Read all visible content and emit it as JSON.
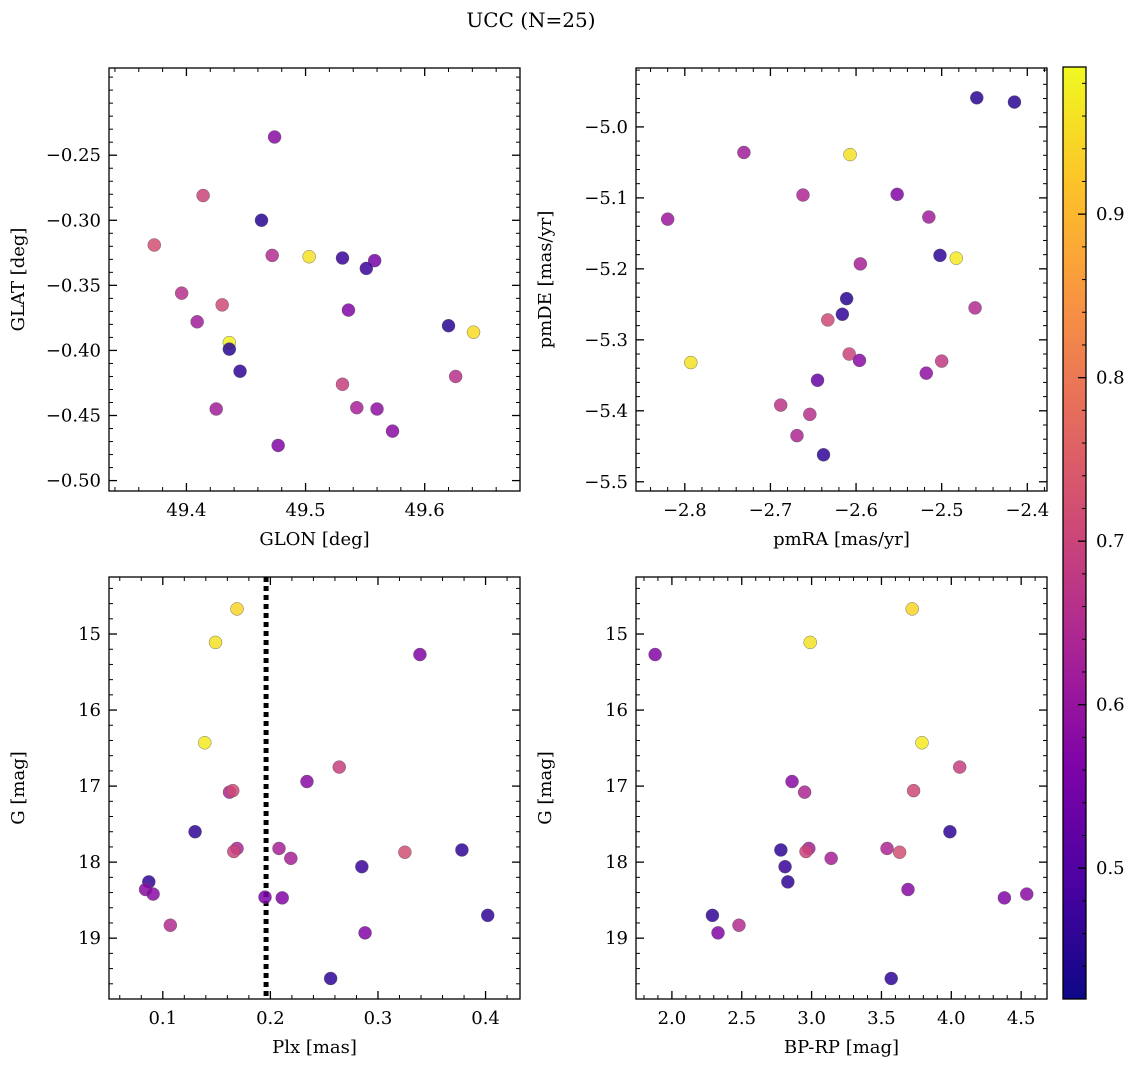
{
  "figure": {
    "title": "UCC (N=25)",
    "colorbar": {
      "colormap": "plasma",
      "range": [
        0.42,
        0.99
      ],
      "ticks": [
        "0.5",
        "0.6",
        "0.7",
        "0.8",
        "0.9"
      ]
    }
  },
  "chart_data": [
    {
      "type": "scatter",
      "xlabel": "GLON [deg]",
      "ylabel": "GLAT [deg]",
      "xlim": [
        49.335,
        49.68
      ],
      "ylim": [
        -0.508,
        -0.183
      ],
      "xticks": [
        "49.4",
        "49.5",
        "49.6"
      ],
      "yticks": [
        "−0.25",
        "−0.30",
        "−0.35",
        "−0.40",
        "−0.45",
        "−0.50"
      ],
      "points": [
        {
          "x": 49.474,
          "y": -0.236,
          "c": 0.58
        },
        {
          "x": 49.414,
          "y": -0.281,
          "c": 0.7
        },
        {
          "x": 49.463,
          "y": -0.3,
          "c": 0.45
        },
        {
          "x": 49.373,
          "y": -0.319,
          "c": 0.72
        },
        {
          "x": 49.472,
          "y": -0.327,
          "c": 0.65
        },
        {
          "x": 49.503,
          "y": -0.328,
          "c": 0.96
        },
        {
          "x": 49.531,
          "y": -0.329,
          "c": 0.47
        },
        {
          "x": 49.558,
          "y": -0.331,
          "c": 0.55
        },
        {
          "x": 49.551,
          "y": -0.337,
          "c": 0.47
        },
        {
          "x": 49.396,
          "y": -0.356,
          "c": 0.66
        },
        {
          "x": 49.43,
          "y": -0.365,
          "c": 0.71
        },
        {
          "x": 49.536,
          "y": -0.369,
          "c": 0.57
        },
        {
          "x": 49.409,
          "y": -0.378,
          "c": 0.62
        },
        {
          "x": 49.62,
          "y": -0.381,
          "c": 0.45
        },
        {
          "x": 49.641,
          "y": -0.386,
          "c": 0.95
        },
        {
          "x": 49.436,
          "y": -0.394,
          "c": 0.98
        },
        {
          "x": 49.436,
          "y": -0.399,
          "c": 0.45
        },
        {
          "x": 49.445,
          "y": -0.416,
          "c": 0.46
        },
        {
          "x": 49.626,
          "y": -0.42,
          "c": 0.66
        },
        {
          "x": 49.531,
          "y": -0.426,
          "c": 0.69
        },
        {
          "x": 49.425,
          "y": -0.445,
          "c": 0.62
        },
        {
          "x": 49.543,
          "y": -0.444,
          "c": 0.63
        },
        {
          "x": 49.56,
          "y": -0.445,
          "c": 0.59
        },
        {
          "x": 49.477,
          "y": -0.473,
          "c": 0.57
        },
        {
          "x": 49.573,
          "y": -0.462,
          "c": 0.58
        }
      ]
    },
    {
      "type": "scatter",
      "xlabel": "pmRA [mas/yr]",
      "ylabel": "pmDE [mas/yr]",
      "xlim": [
        -2.857,
        -2.377
      ],
      "ylim": [
        -5.513,
        -4.917
      ],
      "xticks": [
        "−2.8",
        "−2.7",
        "−2.6",
        "−2.5",
        "−2.4"
      ],
      "yticks": [
        "−5.0",
        "−5.1",
        "−5.2",
        "−5.3",
        "−5.4",
        "−5.5"
      ],
      "points": [
        {
          "x": -2.459,
          "y": -4.959,
          "c": 0.45
        },
        {
          "x": -2.415,
          "y": -4.965,
          "c": 0.45
        },
        {
          "x": -2.731,
          "y": -5.036,
          "c": 0.62
        },
        {
          "x": -2.607,
          "y": -5.039,
          "c": 0.96
        },
        {
          "x": -2.662,
          "y": -5.096,
          "c": 0.64
        },
        {
          "x": -2.552,
          "y": -5.095,
          "c": 0.57
        },
        {
          "x": -2.82,
          "y": -5.13,
          "c": 0.61
        },
        {
          "x": -2.515,
          "y": -5.127,
          "c": 0.62
        },
        {
          "x": -2.502,
          "y": -5.181,
          "c": 0.46
        },
        {
          "x": -2.483,
          "y": -5.185,
          "c": 0.97
        },
        {
          "x": -2.595,
          "y": -5.193,
          "c": 0.63
        },
        {
          "x": -2.611,
          "y": -5.242,
          "c": 0.45
        },
        {
          "x": -2.461,
          "y": -5.255,
          "c": 0.65
        },
        {
          "x": -2.616,
          "y": -5.264,
          "c": 0.46
        },
        {
          "x": -2.633,
          "y": -5.272,
          "c": 0.71
        },
        {
          "x": -2.608,
          "y": -5.32,
          "c": 0.7
        },
        {
          "x": -2.596,
          "y": -5.329,
          "c": 0.58
        },
        {
          "x": -2.5,
          "y": -5.33,
          "c": 0.68
        },
        {
          "x": -2.793,
          "y": -5.332,
          "c": 0.96
        },
        {
          "x": -2.518,
          "y": -5.347,
          "c": 0.59
        },
        {
          "x": -2.645,
          "y": -5.357,
          "c": 0.53
        },
        {
          "x": -2.688,
          "y": -5.392,
          "c": 0.67
        },
        {
          "x": -2.654,
          "y": -5.405,
          "c": 0.66
        },
        {
          "x": -2.669,
          "y": -5.435,
          "c": 0.64
        },
        {
          "x": -2.638,
          "y": -5.462,
          "c": 0.46
        }
      ]
    },
    {
      "type": "scatter",
      "xlabel": "Plx [mas]",
      "ylabel": "G [mag]",
      "y_inverted": true,
      "xlim": [
        0.05,
        0.432
      ],
      "ylim": [
        14.25,
        19.8
      ],
      "xticks": [
        "0.1",
        "0.2",
        "0.3",
        "0.4"
      ],
      "yticks": [
        "15",
        "16",
        "17",
        "18",
        "19"
      ],
      "vline": {
        "x": 0.196,
        "style": "dotted"
      },
      "points": [
        {
          "x": 0.169,
          "y": 14.67,
          "c": 0.94
        },
        {
          "x": 0.149,
          "y": 15.11,
          "c": 0.96
        },
        {
          "x": 0.339,
          "y": 15.27,
          "c": 0.57
        },
        {
          "x": 0.139,
          "y": 16.43,
          "c": 0.97
        },
        {
          "x": 0.264,
          "y": 16.75,
          "c": 0.69
        },
        {
          "x": 0.234,
          "y": 16.94,
          "c": 0.58
        },
        {
          "x": 0.162,
          "y": 17.08,
          "c": 0.64
        },
        {
          "x": 0.165,
          "y": 17.06,
          "c": 0.71
        },
        {
          "x": 0.13,
          "y": 17.6,
          "c": 0.46
        },
        {
          "x": 0.208,
          "y": 17.82,
          "c": 0.63
        },
        {
          "x": 0.169,
          "y": 17.82,
          "c": 0.64
        },
        {
          "x": 0.166,
          "y": 17.86,
          "c": 0.7
        },
        {
          "x": 0.325,
          "y": 17.87,
          "c": 0.72
        },
        {
          "x": 0.378,
          "y": 17.84,
          "c": 0.46
        },
        {
          "x": 0.219,
          "y": 17.95,
          "c": 0.63
        },
        {
          "x": 0.285,
          "y": 18.06,
          "c": 0.47
        },
        {
          "x": 0.087,
          "y": 18.26,
          "c": 0.46
        },
        {
          "x": 0.084,
          "y": 18.36,
          "c": 0.58
        },
        {
          "x": 0.091,
          "y": 18.42,
          "c": 0.58
        },
        {
          "x": 0.211,
          "y": 18.47,
          "c": 0.57
        },
        {
          "x": 0.195,
          "y": 18.46,
          "c": 0.56
        },
        {
          "x": 0.402,
          "y": 18.7,
          "c": 0.46
        },
        {
          "x": 0.107,
          "y": 18.83,
          "c": 0.65
        },
        {
          "x": 0.288,
          "y": 18.93,
          "c": 0.57
        },
        {
          "x": 0.256,
          "y": 19.53,
          "c": 0.46
        }
      ]
    },
    {
      "type": "scatter",
      "xlabel": "BP-RP [mag]",
      "ylabel": "G [mag]",
      "y_inverted": true,
      "xlim": [
        1.743,
        4.685
      ],
      "ylim": [
        14.25,
        19.8
      ],
      "xticks": [
        "2.0",
        "2.5",
        "3.0",
        "3.5",
        "4.0",
        "4.5"
      ],
      "yticks": [
        "15",
        "16",
        "17",
        "18",
        "19"
      ],
      "points": [
        {
          "x": 3.72,
          "y": 14.67,
          "c": 0.94
        },
        {
          "x": 2.99,
          "y": 15.11,
          "c": 0.96
        },
        {
          "x": 1.88,
          "y": 15.27,
          "c": 0.57
        },
        {
          "x": 3.79,
          "y": 16.43,
          "c": 0.97
        },
        {
          "x": 4.06,
          "y": 16.75,
          "c": 0.69
        },
        {
          "x": 2.86,
          "y": 16.94,
          "c": 0.58
        },
        {
          "x": 3.73,
          "y": 17.06,
          "c": 0.71
        },
        {
          "x": 2.95,
          "y": 17.08,
          "c": 0.64
        },
        {
          "x": 3.99,
          "y": 17.6,
          "c": 0.46
        },
        {
          "x": 2.78,
          "y": 17.84,
          "c": 0.46
        },
        {
          "x": 2.98,
          "y": 17.82,
          "c": 0.63
        },
        {
          "x": 2.96,
          "y": 17.86,
          "c": 0.7
        },
        {
          "x": 3.54,
          "y": 17.82,
          "c": 0.64
        },
        {
          "x": 3.63,
          "y": 17.87,
          "c": 0.72
        },
        {
          "x": 3.14,
          "y": 17.95,
          "c": 0.63
        },
        {
          "x": 2.81,
          "y": 18.06,
          "c": 0.47
        },
        {
          "x": 2.83,
          "y": 18.26,
          "c": 0.46
        },
        {
          "x": 3.69,
          "y": 18.36,
          "c": 0.58
        },
        {
          "x": 4.38,
          "y": 18.47,
          "c": 0.57
        },
        {
          "x": 4.54,
          "y": 18.42,
          "c": 0.58
        },
        {
          "x": 2.29,
          "y": 18.7,
          "c": 0.46
        },
        {
          "x": 2.33,
          "y": 18.93,
          "c": 0.57
        },
        {
          "x": 2.48,
          "y": 18.83,
          "c": 0.65
        },
        {
          "x": 3.57,
          "y": 19.53,
          "c": 0.46
        }
      ]
    }
  ]
}
